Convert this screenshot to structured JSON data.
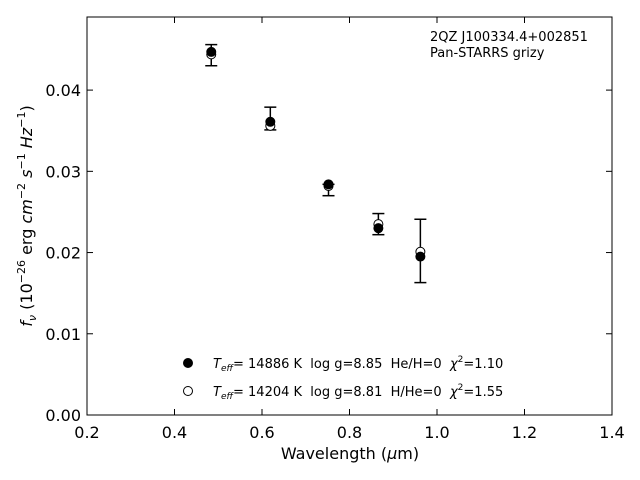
{
  "chart_data": {
    "type": "scatter",
    "annotation": [
      "2QZ J100334.4+002851",
      "Pan-STARRS grizy"
    ],
    "xlim": [
      0.2,
      1.4
    ],
    "ylim": [
      0.0,
      0.049
    ],
    "xticks": [
      "0.2",
      "0.4",
      "0.6",
      "0.8",
      "1.0",
      "1.2",
      "1.4"
    ],
    "yticks": [
      "0.00",
      "0.01",
      "0.02",
      "0.03",
      "0.04"
    ],
    "grid": false,
    "legend_position": "lower-left",
    "observed": {
      "x": [
        0.484,
        0.619,
        0.752,
        0.866,
        0.962
      ],
      "y": [
        0.0443,
        0.0365,
        0.0277,
        0.0235,
        0.0202
      ],
      "yerr": [
        0.0013,
        0.0014,
        0.0007,
        0.0013,
        0.0039
      ]
    },
    "series": [
      {
        "name": "Teff= 14886 K  log g=8.85  He/H=0  χ²=1.10",
        "marker": "filled-circle",
        "x": [
          0.484,
          0.619,
          0.752,
          0.866,
          0.962
        ],
        "y": [
          0.0447,
          0.0361,
          0.0284,
          0.023,
          0.0195
        ]
      },
      {
        "name": "Teff= 14204 K  log g=8.81  H/He=0  χ²=1.55",
        "marker": "open-circle",
        "x": [
          0.484,
          0.619,
          0.752,
          0.866,
          0.962
        ],
        "y": [
          0.0444,
          0.0356,
          0.0282,
          0.0235,
          0.0201
        ]
      }
    ],
    "legend": [
      {
        "t": "T",
        "sub": "eff",
        "rest": "= 14886 K  log g=8.85  He/H=0  ",
        "chi": "χ",
        "sup": "2",
        "end": "=1.10"
      },
      {
        "t": "T",
        "sub": "eff",
        "rest": "= 14204 K  log g=8.81  H/He=0  ",
        "chi": "χ",
        "sup": "2",
        "end": "=1.55"
      }
    ]
  }
}
